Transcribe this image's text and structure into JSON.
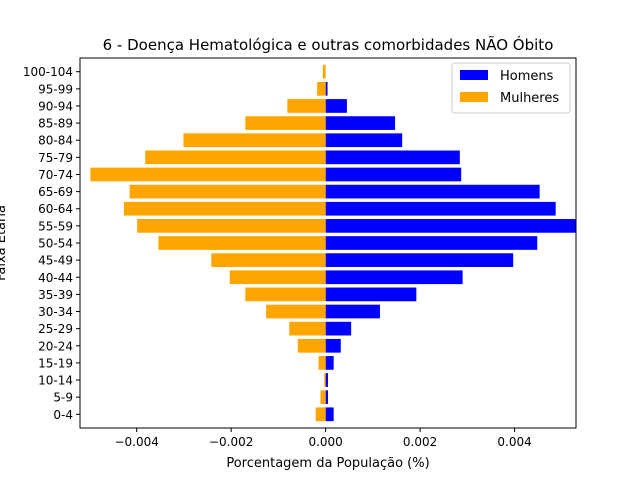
{
  "chart_data": {
    "type": "bar",
    "orientation": "horizontal",
    "title": "6 - Doença Hematológica e outras comorbidades NÃO Óbito",
    "xlabel": "Porcentagem da População (%)",
    "ylabel": "Faixa Etária",
    "xlim": [
      -0.0052,
      0.0053
    ],
    "xticks": [
      -0.004,
      -0.002,
      0.0,
      0.002,
      0.004
    ],
    "xtick_labels": [
      "−0.004",
      "−0.002",
      "0.000",
      "0.002",
      "0.004"
    ],
    "categories": [
      "0-4",
      "5-9",
      "10-14",
      "15-19",
      "20-24",
      "25-29",
      "30-34",
      "35-39",
      "40-44",
      "45-49",
      "50-54",
      "55-59",
      "60-64",
      "65-69",
      "70-74",
      "75-79",
      "80-84",
      "85-89",
      "90-94",
      "95-99",
      "100-104"
    ],
    "legend": {
      "position": "top-right"
    },
    "series": [
      {
        "name": "Homens",
        "color": "#0000ff",
        "values": [
          0.00017,
          5e-05,
          5e-05,
          0.00017,
          0.00032,
          0.00054,
          0.00115,
          0.00192,
          0.0029,
          0.00397,
          0.00448,
          0.0053,
          0.00487,
          0.00453,
          0.00287,
          0.00284,
          0.00162,
          0.00147,
          0.00045,
          4e-05,
          0.0
        ]
      },
      {
        "name": "Mulheres",
        "color": "#ffa500",
        "values": [
          -0.00021,
          -0.00011,
          -3e-05,
          -0.00015,
          -0.00059,
          -0.00077,
          -0.00126,
          -0.0017,
          -0.00203,
          -0.00242,
          -0.00354,
          -0.00399,
          -0.00427,
          -0.00415,
          -0.00498,
          -0.00382,
          -0.00301,
          -0.0017,
          -0.00081,
          -0.00018,
          -6e-05
        ]
      }
    ]
  }
}
